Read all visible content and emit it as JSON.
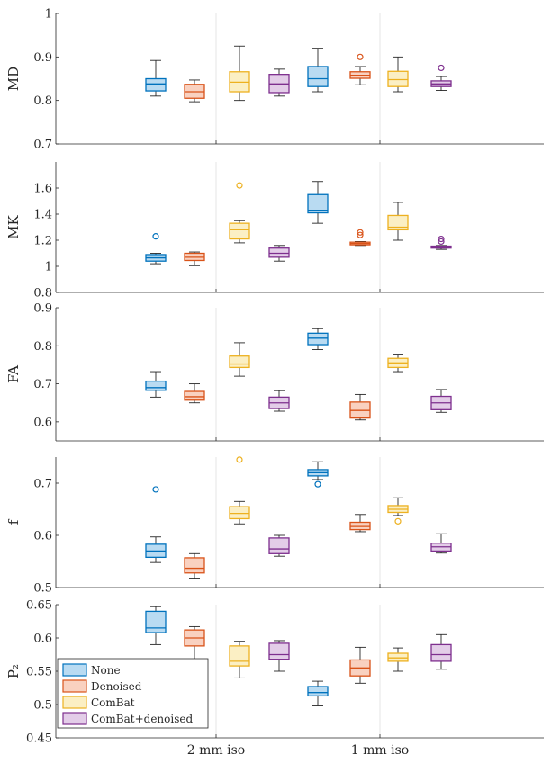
{
  "chart_data": {
    "type": "boxplot",
    "groups": [
      "2 mm iso",
      "1 mm iso"
    ],
    "legend": {
      "position": "bottom-left",
      "items": [
        {
          "label": "None",
          "color": "#0072BD",
          "fill": "#B9DBF2"
        },
        {
          "label": "Denoised",
          "color": "#D95319",
          "fill": "#F9D1C0"
        },
        {
          "label": "ComBat",
          "color": "#EDB120",
          "fill": "#FBEFC4"
        },
        {
          "label": "ComBat+denoised",
          "color": "#7E2F8E",
          "fill": "#E3CDE8"
        }
      ]
    },
    "panels": [
      {
        "ylabel": "MD",
        "ylim": [
          0.7,
          1.0
        ],
        "yticks": [
          0.7,
          0.8,
          0.9,
          1.0
        ],
        "ytick_labels": [
          "0.7",
          "0.8",
          "0.9",
          "1"
        ],
        "boxes": [
          {
            "group": "2 mm iso",
            "series": "None",
            "min": 0.81,
            "q1": 0.822,
            "median": 0.838,
            "q3": 0.85,
            "max": 0.892,
            "outliers": []
          },
          {
            "group": "2 mm iso",
            "series": "Denoised",
            "min": 0.797,
            "q1": 0.805,
            "median": 0.82,
            "q3": 0.837,
            "max": 0.847,
            "outliers": []
          },
          {
            "group": "2 mm iso",
            "series": "ComBat",
            "min": 0.8,
            "q1": 0.82,
            "median": 0.842,
            "q3": 0.866,
            "max": 0.925,
            "outliers": []
          },
          {
            "group": "2 mm iso",
            "series": "ComBat+denoised",
            "min": 0.81,
            "q1": 0.818,
            "median": 0.838,
            "q3": 0.86,
            "max": 0.872,
            "outliers": []
          },
          {
            "group": "1 mm iso",
            "series": "None",
            "min": 0.82,
            "q1": 0.832,
            "median": 0.85,
            "q3": 0.878,
            "max": 0.92,
            "outliers": []
          },
          {
            "group": "1 mm iso",
            "series": "Denoised",
            "min": 0.836,
            "q1": 0.851,
            "median": 0.858,
            "q3": 0.866,
            "max": 0.878,
            "outliers": [
              0.9
            ]
          },
          {
            "group": "1 mm iso",
            "series": "ComBat",
            "min": 0.82,
            "q1": 0.832,
            "median": 0.848,
            "q3": 0.867,
            "max": 0.9,
            "outliers": []
          },
          {
            "group": "1 mm iso",
            "series": "ComBat+denoised",
            "min": 0.823,
            "q1": 0.832,
            "median": 0.838,
            "q3": 0.845,
            "max": 0.855,
            "outliers": [
              0.875
            ]
          }
        ]
      },
      {
        "ylabel": "MK",
        "ylim": [
          0.8,
          1.8
        ],
        "yticks": [
          0.8,
          1.0,
          1.2,
          1.4,
          1.6
        ],
        "ytick_labels": [
          "0.8",
          "1",
          "1.2",
          "1.4",
          "1.6"
        ],
        "boxes": [
          {
            "group": "2 mm iso",
            "series": "None",
            "min": 1.02,
            "q1": 1.04,
            "median": 1.065,
            "q3": 1.09,
            "max": 1.1,
            "outliers": [
              1.23
            ]
          },
          {
            "group": "2 mm iso",
            "series": "Denoised",
            "min": 1.005,
            "q1": 1.045,
            "median": 1.07,
            "q3": 1.1,
            "max": 1.11,
            "outliers": []
          },
          {
            "group": "2 mm iso",
            "series": "ComBat",
            "min": 1.18,
            "q1": 1.21,
            "median": 1.28,
            "q3": 1.33,
            "max": 1.35,
            "outliers": [
              1.62
            ]
          },
          {
            "group": "2 mm iso",
            "series": "ComBat+denoised",
            "min": 1.04,
            "q1": 1.07,
            "median": 1.1,
            "q3": 1.14,
            "max": 1.16,
            "outliers": []
          },
          {
            "group": "1 mm iso",
            "series": "None",
            "min": 1.33,
            "q1": 1.41,
            "median": 1.43,
            "q3": 1.55,
            "max": 1.65,
            "outliers": []
          },
          {
            "group": "1 mm iso",
            "series": "Denoised",
            "min": 1.16,
            "q1": 1.165,
            "median": 1.175,
            "q3": 1.185,
            "max": 1.19,
            "outliers": [
              1.24,
              1.26
            ]
          },
          {
            "group": "1 mm iso",
            "series": "ComBat",
            "min": 1.2,
            "q1": 1.28,
            "median": 1.3,
            "q3": 1.39,
            "max": 1.49,
            "outliers": []
          },
          {
            "group": "1 mm iso",
            "series": "ComBat+denoised",
            "min": 1.13,
            "q1": 1.14,
            "median": 1.145,
            "q3": 1.155,
            "max": 1.16,
            "outliers": [
              1.19,
              1.21
            ]
          }
        ]
      },
      {
        "ylabel": "FA",
        "ylim": [
          0.55,
          0.9
        ],
        "yticks": [
          0.6,
          0.7,
          0.8,
          0.9
        ],
        "ytick_labels": [
          "0.6",
          "0.7",
          "0.8",
          "0.9"
        ],
        "boxes": [
          {
            "group": "2 mm iso",
            "series": "None",
            "min": 0.665,
            "q1": 0.683,
            "median": 0.69,
            "q3": 0.707,
            "max": 0.732,
            "outliers": []
          },
          {
            "group": "2 mm iso",
            "series": "Denoised",
            "min": 0.65,
            "q1": 0.657,
            "median": 0.666,
            "q3": 0.68,
            "max": 0.7,
            "outliers": []
          },
          {
            "group": "2 mm iso",
            "series": "ComBat",
            "min": 0.72,
            "q1": 0.743,
            "median": 0.752,
            "q3": 0.773,
            "max": 0.808,
            "outliers": []
          },
          {
            "group": "2 mm iso",
            "series": "ComBat+denoised",
            "min": 0.628,
            "q1": 0.635,
            "median": 0.65,
            "q3": 0.665,
            "max": 0.682,
            "outliers": []
          },
          {
            "group": "1 mm iso",
            "series": "None",
            "min": 0.79,
            "q1": 0.803,
            "median": 0.82,
            "q3": 0.833,
            "max": 0.845,
            "outliers": []
          },
          {
            "group": "1 mm iso",
            "series": "Denoised",
            "min": 0.605,
            "q1": 0.61,
            "median": 0.63,
            "q3": 0.652,
            "max": 0.672,
            "outliers": []
          },
          {
            "group": "1 mm iso",
            "series": "ComBat",
            "min": 0.732,
            "q1": 0.743,
            "median": 0.755,
            "q3": 0.767,
            "max": 0.778,
            "outliers": []
          },
          {
            "group": "1 mm iso",
            "series": "ComBat+denoised",
            "min": 0.625,
            "q1": 0.632,
            "median": 0.65,
            "q3": 0.667,
            "max": 0.685,
            "outliers": []
          }
        ]
      },
      {
        "ylabel": "f",
        "ylim": [
          0.5,
          0.75
        ],
        "yticks": [
          0.5,
          0.6,
          0.7
        ],
        "ytick_labels": [
          "0.5",
          "0.6",
          "0.7"
        ],
        "boxes": [
          {
            "group": "2 mm iso",
            "series": "None",
            "min": 0.548,
            "q1": 0.558,
            "median": 0.57,
            "q3": 0.583,
            "max": 0.597,
            "outliers": [
              0.688
            ]
          },
          {
            "group": "2 mm iso",
            "series": "Denoised",
            "min": 0.518,
            "q1": 0.528,
            "median": 0.537,
            "q3": 0.557,
            "max": 0.565,
            "outliers": []
          },
          {
            "group": "2 mm iso",
            "series": "ComBat",
            "min": 0.622,
            "q1": 0.632,
            "median": 0.642,
            "q3": 0.655,
            "max": 0.665,
            "outliers": [
              0.745
            ]
          },
          {
            "group": "2 mm iso",
            "series": "ComBat+denoised",
            "min": 0.56,
            "q1": 0.565,
            "median": 0.574,
            "q3": 0.595,
            "max": 0.6,
            "outliers": []
          },
          {
            "group": "1 mm iso",
            "series": "None",
            "min": 0.707,
            "q1": 0.714,
            "median": 0.72,
            "q3": 0.726,
            "max": 0.741,
            "outliers": [
              0.698
            ]
          },
          {
            "group": "1 mm iso",
            "series": "Denoised",
            "min": 0.607,
            "q1": 0.611,
            "median": 0.617,
            "q3": 0.625,
            "max": 0.64,
            "outliers": []
          },
          {
            "group": "1 mm iso",
            "series": "ComBat",
            "min": 0.638,
            "q1": 0.644,
            "median": 0.65,
            "q3": 0.657,
            "max": 0.672,
            "outliers": [
              0.627
            ]
          },
          {
            "group": "1 mm iso",
            "series": "ComBat+denoised",
            "min": 0.566,
            "q1": 0.57,
            "median": 0.578,
            "q3": 0.585,
            "max": 0.603,
            "outliers": []
          }
        ]
      },
      {
        "ylabel": "P₂",
        "ylim": [
          0.45,
          0.65
        ],
        "yticks": [
          0.45,
          0.5,
          0.55,
          0.6,
          0.65
        ],
        "ytick_labels": [
          "0.45",
          "0.5",
          "0.55",
          "0.6",
          "0.65"
        ],
        "boxes": [
          {
            "group": "2 mm iso",
            "series": "None",
            "min": 0.59,
            "q1": 0.608,
            "median": 0.615,
            "q3": 0.64,
            "max": 0.647,
            "outliers": []
          },
          {
            "group": "2 mm iso",
            "series": "Denoised",
            "min": 0.568,
            "q1": 0.588,
            "median": 0.6,
            "q3": 0.612,
            "max": 0.617,
            "outliers": []
          },
          {
            "group": "2 mm iso",
            "series": "ComBat",
            "min": 0.54,
            "q1": 0.558,
            "median": 0.565,
            "q3": 0.588,
            "max": 0.595,
            "outliers": []
          },
          {
            "group": "2 mm iso",
            "series": "ComBat+denoised",
            "min": 0.55,
            "q1": 0.568,
            "median": 0.575,
            "q3": 0.592,
            "max": 0.596,
            "outliers": []
          },
          {
            "group": "1 mm iso",
            "series": "None",
            "min": 0.498,
            "q1": 0.513,
            "median": 0.518,
            "q3": 0.527,
            "max": 0.535,
            "outliers": []
          },
          {
            "group": "1 mm iso",
            "series": "Denoised",
            "min": 0.532,
            "q1": 0.543,
            "median": 0.555,
            "q3": 0.567,
            "max": 0.586,
            "outliers": []
          },
          {
            "group": "1 mm iso",
            "series": "ComBat",
            "min": 0.55,
            "q1": 0.565,
            "median": 0.57,
            "q3": 0.577,
            "max": 0.585,
            "outliers": []
          },
          {
            "group": "1 mm iso",
            "series": "ComBat+denoised",
            "min": 0.553,
            "q1": 0.565,
            "median": 0.575,
            "q3": 0.59,
            "max": 0.605,
            "outliers": []
          }
        ]
      }
    ]
  }
}
